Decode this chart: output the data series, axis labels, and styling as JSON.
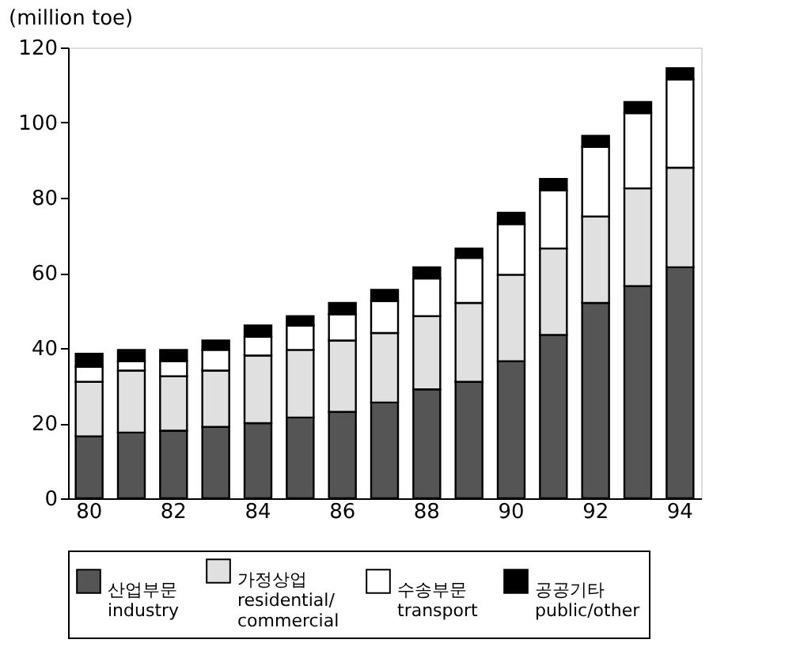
{
  "chart_data": {
    "type": "bar",
    "stacked": true,
    "ylabel": "(million toe)",
    "categories": [
      "80",
      null,
      "82",
      null,
      "84",
      null,
      "86",
      null,
      "88",
      null,
      "90",
      null,
      "92",
      null,
      "94"
    ],
    "series": [
      {
        "name": "산업부문\nindustry",
        "color": "#555555",
        "values": [
          16.5,
          17.5,
          18,
          19,
          20,
          21.5,
          23,
          25.5,
          29,
          31,
          36.5,
          43.5,
          52,
          56.5,
          61.5
        ]
      },
      {
        "name": "가정상업\nresidential/\ncommercial",
        "color": "#e0e0e0",
        "values": [
          14.5,
          16.5,
          14.5,
          15,
          18,
          18,
          19,
          18.5,
          19.5,
          21,
          23,
          23,
          23,
          26,
          26.5
        ]
      },
      {
        "name": "수송부문\ntransport",
        "color": "#ffffff",
        "values": [
          4,
          2.5,
          4,
          5.5,
          5,
          6.5,
          7,
          8.5,
          10,
          12,
          13.5,
          15.5,
          18.5,
          20,
          23.5
        ]
      },
      {
        "name": "공공기타\npublic/other",
        "color": "#000000",
        "values": [
          3.5,
          3,
          3,
          2.5,
          3,
          2.5,
          3,
          3,
          3,
          2.5,
          3,
          3,
          3,
          3,
          3
        ]
      }
    ],
    "ylim": [
      0,
      120
    ],
    "yticks": [
      0,
      20,
      40,
      60,
      80,
      100,
      120
    ],
    "grid": false,
    "legend": "bottom"
  }
}
